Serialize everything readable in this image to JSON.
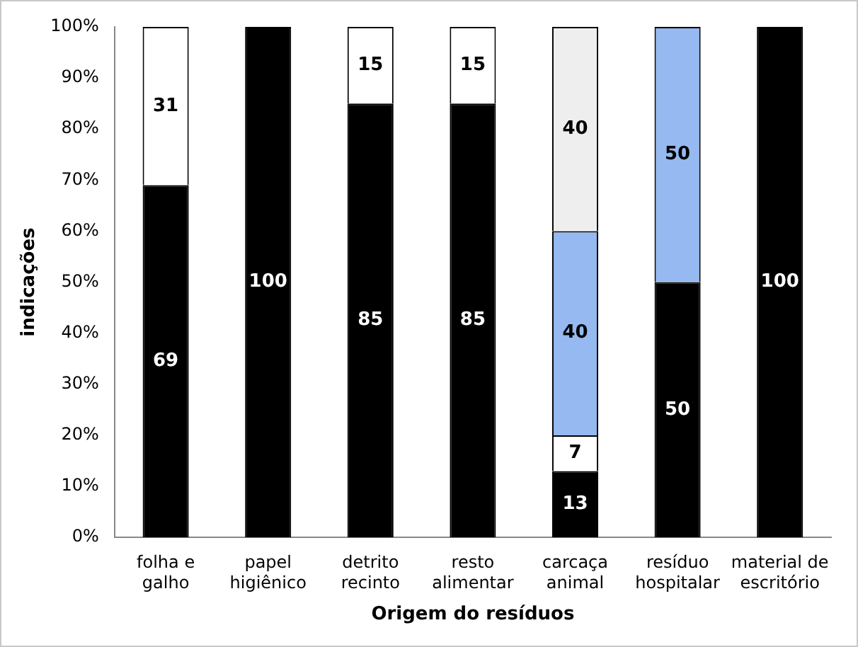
{
  "chart_data": {
    "type": "bar",
    "stacked": true,
    "xlabel": "Origem do resíduos",
    "ylabel": "indicações",
    "categories": [
      "folha e galho",
      "papel higiênico",
      "detrito recinto",
      "resto alimentar",
      "carcaça animal",
      "resíduo hospitalar",
      "material de escritório"
    ],
    "series": [
      {
        "color": "#000000",
        "values": [
          69,
          100,
          85,
          85,
          13,
          50,
          100
        ]
      },
      {
        "color": "#ffffff",
        "values": [
          31,
          null,
          15,
          15,
          7,
          null,
          null
        ]
      },
      {
        "color": "#95b9f0",
        "values": [
          null,
          null,
          null,
          null,
          40,
          50,
          null
        ]
      },
      {
        "color": "#eeeeee",
        "values": [
          null,
          null,
          null,
          null,
          40,
          null,
          null
        ]
      }
    ],
    "ylim": [
      0,
      100
    ],
    "yticks": [
      {
        "value": 0,
        "label": "0%"
      },
      {
        "value": 10,
        "label": "10%"
      },
      {
        "value": 20,
        "label": "20%"
      },
      {
        "value": 30,
        "label": "30%"
      },
      {
        "value": 40,
        "label": "40%"
      },
      {
        "value": 50,
        "label": "50%"
      },
      {
        "value": 60,
        "label": "60%"
      },
      {
        "value": 70,
        "label": "70%"
      },
      {
        "value": 80,
        "label": "80%"
      },
      {
        "value": 90,
        "label": "90%"
      },
      {
        "value": 100,
        "label": "100%"
      }
    ],
    "data_labels": true,
    "grid": false,
    "legend": false
  }
}
